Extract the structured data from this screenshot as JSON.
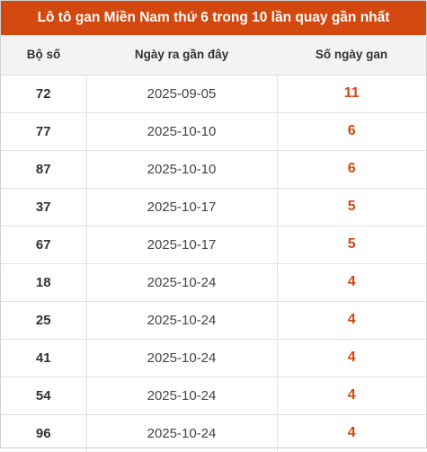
{
  "title": "Lô tô gan Miền Nam thứ 6 trong 10 lần quay gần nhất",
  "headers": {
    "number": "Bộ số",
    "last_date": "Ngày ra gần đây",
    "days_gan": "Số ngày gan"
  },
  "rows": [
    {
      "number": "72",
      "last_date": "2025-09-05",
      "days_gan": "11"
    },
    {
      "number": "77",
      "last_date": "2025-10-10",
      "days_gan": "6"
    },
    {
      "number": "87",
      "last_date": "2025-10-10",
      "days_gan": "6"
    },
    {
      "number": "37",
      "last_date": "2025-10-17",
      "days_gan": "5"
    },
    {
      "number": "67",
      "last_date": "2025-10-17",
      "days_gan": "5"
    },
    {
      "number": "18",
      "last_date": "2025-10-24",
      "days_gan": "4"
    },
    {
      "number": "25",
      "last_date": "2025-10-24",
      "days_gan": "4"
    },
    {
      "number": "41",
      "last_date": "2025-10-24",
      "days_gan": "4"
    },
    {
      "number": "54",
      "last_date": "2025-10-24",
      "days_gan": "4"
    },
    {
      "number": "96",
      "last_date": "2025-10-24",
      "days_gan": "4"
    }
  ],
  "colors": {
    "accent": "#d2480e",
    "header_bg": "#f3f3f3",
    "text": "#333333"
  }
}
